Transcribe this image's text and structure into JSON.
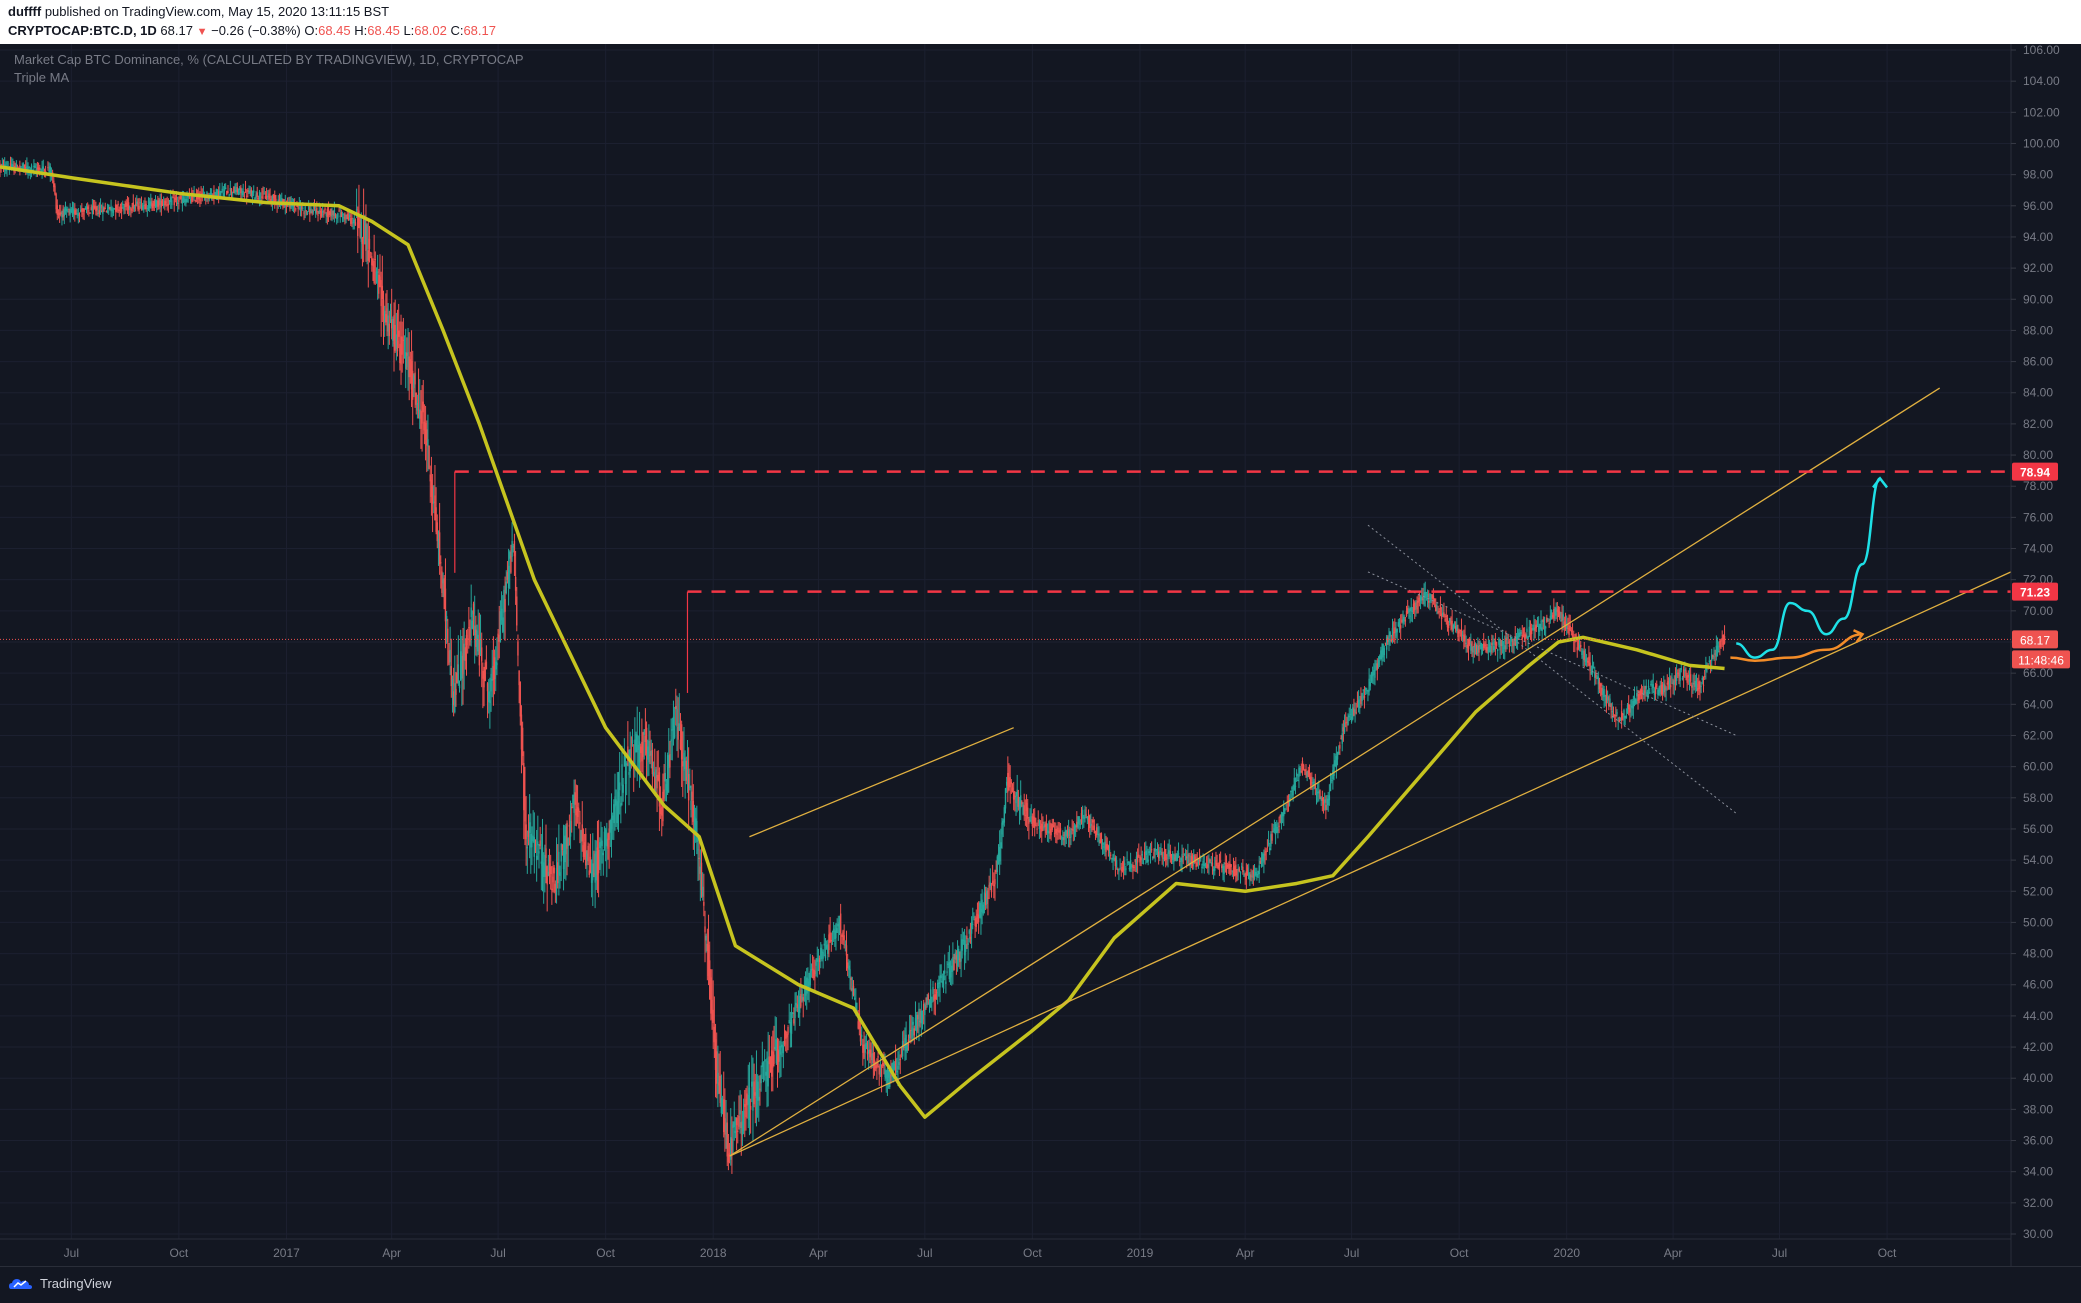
{
  "header": {
    "publisher": "duffff",
    "published_text": "published on TradingView.com, May 15, 2020 13:11:15 BST",
    "symbol": "CRYPTOCAP:BTC.D, 1D",
    "price": "68.17",
    "change": "−0.26 (−0.38%)",
    "o_label": "O:",
    "o_value": "68.45",
    "h_label": "H:",
    "h_value": "68.45",
    "l_label": "L:",
    "l_value": "68.02",
    "c_label": "C:",
    "c_value": "68.17"
  },
  "chart": {
    "title": "Market Cap BTC Dominance, % (CALCULATED BY TRADINGVIEW), 1D, CRYPTOCAP",
    "indicator": "Triple MA",
    "colors": {
      "background": "#131722",
      "up": "#26a69a",
      "down": "#ef5350",
      "ma": "#c6c41f",
      "channel": "#e0b040",
      "dashed": "#f23645",
      "projection_cyan": "#1ee0e6",
      "projection_orange": "#f28c28",
      "grid": "#1c2030",
      "axis_text": "#787b86"
    }
  },
  "footer": {
    "brand": "TradingView"
  },
  "chart_data": {
    "type": "candlestick",
    "title": "Market Cap BTC Dominance, % (CALCULATED BY TRADINGVIEW), 1D, CRYPTOCAP",
    "ylim": [
      30,
      106
    ],
    "yticks": [
      "30.00",
      "32.00",
      "34.00",
      "36.00",
      "38.00",
      "40.00",
      "42.00",
      "44.00",
      "46.00",
      "48.00",
      "50.00",
      "52.00",
      "54.00",
      "56.00",
      "58.00",
      "60.00",
      "62.00",
      "64.00",
      "66.00",
      "68.00",
      "70.00",
      "72.00",
      "74.00",
      "76.00",
      "78.00",
      "80.00",
      "82.00",
      "84.00",
      "86.00",
      "88.00",
      "90.00",
      "92.00",
      "94.00",
      "96.00",
      "98.00",
      "100.00",
      "102.00",
      "104.00",
      "106.00"
    ],
    "xlim": [
      "2016-05-01",
      "2021-01-15"
    ],
    "xticks": [
      {
        "date": "2016-07-01",
        "label": "Jul"
      },
      {
        "date": "2016-10-01",
        "label": "Oct"
      },
      {
        "date": "2017-01-01",
        "label": "2017"
      },
      {
        "date": "2017-04-01",
        "label": "Apr"
      },
      {
        "date": "2017-07-01",
        "label": "Jul"
      },
      {
        "date": "2017-10-01",
        "label": "Oct"
      },
      {
        "date": "2018-01-01",
        "label": "2018"
      },
      {
        "date": "2018-04-01",
        "label": "Apr"
      },
      {
        "date": "2018-07-01",
        "label": "Jul"
      },
      {
        "date": "2018-10-01",
        "label": "Oct"
      },
      {
        "date": "2019-01-01",
        "label": "2019"
      },
      {
        "date": "2019-04-01",
        "label": "Apr"
      },
      {
        "date": "2019-07-01",
        "label": "Jul"
      },
      {
        "date": "2019-10-01",
        "label": "Oct"
      },
      {
        "date": "2020-01-01",
        "label": "2020"
      },
      {
        "date": "2020-04-01",
        "label": "Apr"
      },
      {
        "date": "2020-07-01",
        "label": "Jul"
      },
      {
        "date": "2020-10-01",
        "label": "Oct"
      }
    ],
    "price_path": [
      [
        "2016-05-01",
        98.5
      ],
      [
        "2016-06-15",
        98.3
      ],
      [
        "2016-06-20",
        95.5
      ],
      [
        "2016-08-01",
        95.8
      ],
      [
        "2016-10-01",
        96.3
      ],
      [
        "2016-11-15",
        97.0
      ],
      [
        "2016-12-15",
        96.6
      ],
      [
        "2017-01-20",
        95.7
      ],
      [
        "2017-02-20",
        95.4
      ],
      [
        "2017-03-10",
        94.5
      ],
      [
        "2017-03-25",
        89.5
      ],
      [
        "2017-04-15",
        86.0
      ],
      [
        "2017-05-01",
        81.5
      ],
      [
        "2017-05-15",
        72.0
      ],
      [
        "2017-05-25",
        64.5
      ],
      [
        "2017-06-10",
        69.5
      ],
      [
        "2017-06-25",
        64.5
      ],
      [
        "2017-07-15",
        74.5
      ],
      [
        "2017-07-25",
        56.0
      ],
      [
        "2017-08-20",
        52.5
      ],
      [
        "2017-09-05",
        57.5
      ],
      [
        "2017-09-20",
        53.0
      ],
      [
        "2017-10-10",
        57.0
      ],
      [
        "2017-10-20",
        60.5
      ],
      [
        "2017-11-05",
        61.5
      ],
      [
        "2017-11-20",
        57.5
      ],
      [
        "2017-12-01",
        63.5
      ],
      [
        "2017-12-20",
        55.0
      ],
      [
        "2018-01-05",
        40.0
      ],
      [
        "2018-01-15",
        35.5
      ],
      [
        "2018-02-05",
        39.0
      ],
      [
        "2018-03-01",
        42.0
      ],
      [
        "2018-04-01",
        47.5
      ],
      [
        "2018-04-20",
        50.0
      ],
      [
        "2018-05-10",
        42.0
      ],
      [
        "2018-06-01",
        40.0
      ],
      [
        "2018-07-01",
        44.5
      ],
      [
        "2018-08-01",
        48.0
      ],
      [
        "2018-09-01",
        53.0
      ],
      [
        "2018-09-10",
        59.0
      ],
      [
        "2018-10-01",
        56.5
      ],
      [
        "2018-11-01",
        55.5
      ],
      [
        "2018-11-15",
        57.0
      ],
      [
        "2018-12-15",
        53.5
      ],
      [
        "2019-01-15",
        54.5
      ],
      [
        "2019-02-15",
        54.0
      ],
      [
        "2019-03-15",
        53.5
      ],
      [
        "2019-04-10",
        53.0
      ],
      [
        "2019-05-01",
        56.5
      ],
      [
        "2019-05-20",
        60.0
      ],
      [
        "2019-06-10",
        57.5
      ],
      [
        "2019-06-25",
        62.5
      ],
      [
        "2019-07-15",
        65.0
      ],
      [
        "2019-08-01",
        68.0
      ],
      [
        "2019-08-20",
        70.0
      ],
      [
        "2019-09-05",
        71.0
      ],
      [
        "2019-09-20",
        69.5
      ],
      [
        "2019-10-15",
        67.5
      ],
      [
        "2019-11-15",
        68.0
      ],
      [
        "2019-12-10",
        69.0
      ],
      [
        "2019-12-25",
        70.0
      ],
      [
        "2020-01-10",
        68.0
      ],
      [
        "2020-01-25",
        66.0
      ],
      [
        "2020-02-15",
        63.0
      ],
      [
        "2020-03-10",
        65.0
      ],
      [
        "2020-03-25",
        65.0
      ],
      [
        "2020-04-10",
        66.0
      ],
      [
        "2020-04-25",
        65.0
      ],
      [
        "2020-05-05",
        67.0
      ],
      [
        "2020-05-15",
        68.17
      ]
    ],
    "moving_average": [
      [
        "2016-05-01",
        98.5
      ],
      [
        "2016-07-01",
        97.8
      ],
      [
        "2016-10-01",
        96.8
      ],
      [
        "2016-12-15",
        96.2
      ],
      [
        "2017-02-15",
        96.0
      ],
      [
        "2017-03-15",
        95.0
      ],
      [
        "2017-04-15",
        93.5
      ],
      [
        "2017-05-15",
        88.0
      ],
      [
        "2017-06-15",
        82.0
      ],
      [
        "2017-08-01",
        72.0
      ],
      [
        "2017-10-01",
        62.5
      ],
      [
        "2017-11-20",
        57.5
      ],
      [
        "2017-12-20",
        55.5
      ],
      [
        "2018-01-20",
        48.5
      ],
      [
        "2018-03-15",
        46.0
      ],
      [
        "2018-05-01",
        44.5
      ],
      [
        "2018-06-10",
        39.5
      ],
      [
        "2018-07-01",
        37.5
      ],
      [
        "2018-08-10",
        40.0
      ],
      [
        "2018-09-30",
        43.0
      ],
      [
        "2018-11-01",
        45.0
      ],
      [
        "2018-12-10",
        49.0
      ],
      [
        "2019-02-01",
        52.5
      ],
      [
        "2019-04-01",
        52.0
      ],
      [
        "2019-05-15",
        52.5
      ],
      [
        "2019-06-15",
        53.0
      ],
      [
        "2019-07-15",
        55.5
      ],
      [
        "2019-08-30",
        59.5
      ],
      [
        "2019-10-15",
        63.5
      ],
      [
        "2019-11-30",
        66.5
      ],
      [
        "2019-12-25",
        68.0
      ],
      [
        "2020-01-15",
        68.3
      ],
      [
        "2020-03-01",
        67.5
      ],
      [
        "2020-04-15",
        66.5
      ],
      [
        "2020-05-15",
        66.3
      ]
    ],
    "channel_lines": [
      {
        "from": [
          "2018-01-15",
          35.0
        ],
        "to": [
          "2020-11-15",
          84.3
        ]
      },
      {
        "from": [
          "2018-01-15",
          35.0
        ],
        "to": [
          "2021-01-15",
          72.5
        ]
      },
      {
        "from": [
          "2018-02-01",
          55.5
        ],
        "to": [
          "2018-09-15",
          62.5
        ]
      }
    ],
    "descending_channel": [
      {
        "from": [
          "2019-07-15",
          75.5
        ],
        "to": [
          "2020-05-25",
          57.0
        ]
      },
      {
        "from": [
          "2019-07-15",
          72.5
        ],
        "to": [
          "2020-05-25",
          62.0
        ]
      }
    ],
    "horizontal_levels": [
      {
        "from": "2017-05-25",
        "value": 78.94,
        "label": "78.94"
      },
      {
        "from": "2017-12-10",
        "value": 71.23,
        "label": "71.23"
      }
    ],
    "last_price": {
      "value": 68.17,
      "label": "68.17",
      "countdown": "11:48:46"
    },
    "projections": {
      "cyan": [
        [
          "2020-05-25",
          67.9
        ],
        [
          "2020-06-10",
          67.0
        ],
        [
          "2020-06-25",
          67.5
        ],
        [
          "2020-07-10",
          70.5
        ],
        [
          "2020-07-25",
          70.0
        ],
        [
          "2020-08-10",
          68.5
        ],
        [
          "2020-08-25",
          69.5
        ],
        [
          "2020-09-10",
          73.0
        ],
        [
          "2020-09-25",
          78.5
        ]
      ],
      "orange": [
        [
          "2020-05-20",
          67.0
        ],
        [
          "2020-06-10",
          66.8
        ],
        [
          "2020-07-10",
          67.0
        ],
        [
          "2020-08-10",
          67.5
        ],
        [
          "2020-09-10",
          68.5
        ]
      ]
    }
  }
}
